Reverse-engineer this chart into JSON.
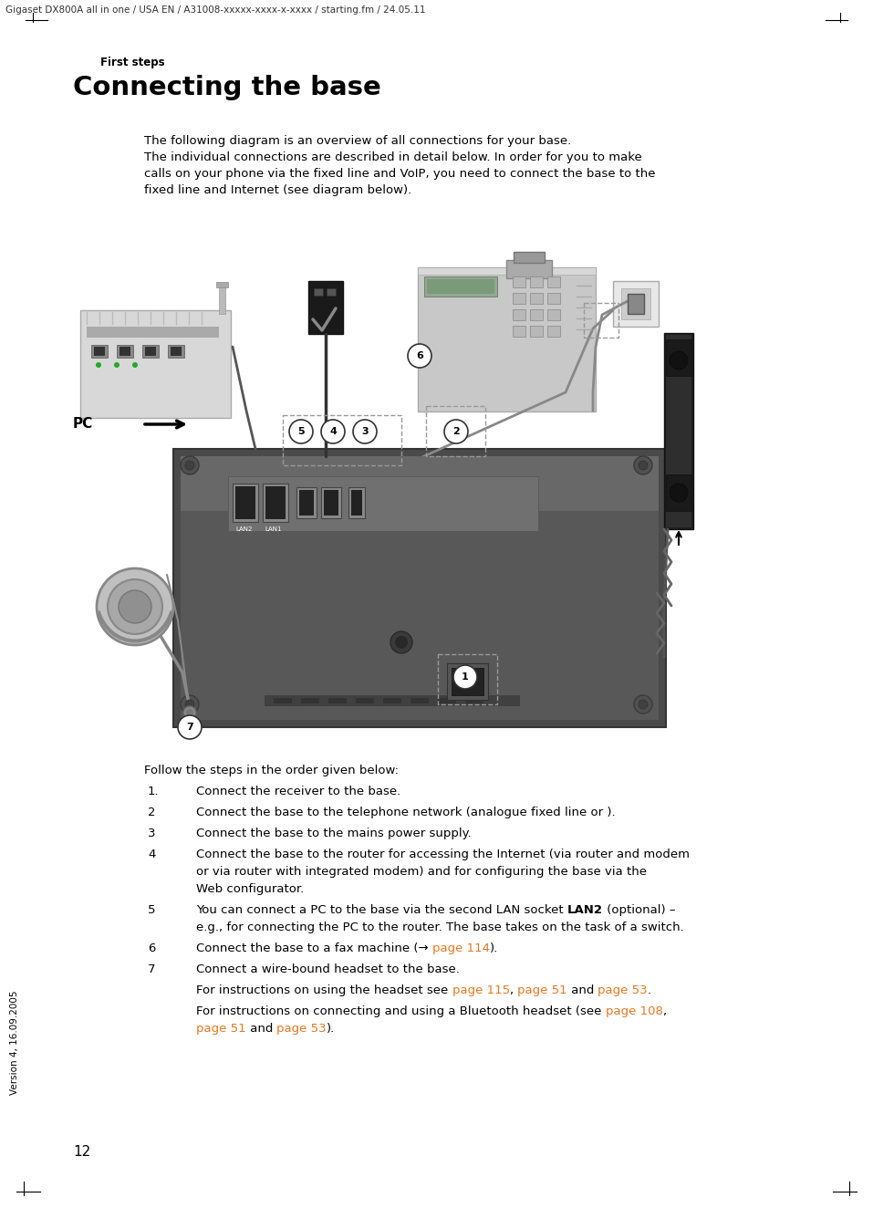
{
  "header_text": "Gigaset DX800A all in one / USA EN / A31008-xxxxx-xxxx-x-xxxx / starting.fm / 24.05.11",
  "section_label": "First steps",
  "title": "Connecting the base",
  "intro_line1": "The following diagram is an overview of all connections for your base.",
  "intro_line2": "The individual connections are described in detail below. In order for you to make",
  "intro_line3": "calls on your phone via the fixed line and VoIP, you need to connect the base to the",
  "intro_line4": "fixed line and Internet (see diagram below).",
  "follow_text": "Follow the steps in the order given below:",
  "step1_num": "1.",
  "step1_text": "Connect the receiver to the base.",
  "step2_num": "2",
  "step2_text": "Connect the base to the telephone network (analogue fixed line or ).",
  "step3_num": "3",
  "step3_text": "Connect the base to the mains power supply.",
  "step4_num": "4",
  "step4_text": "Connect the base to the router for accessing the Internet (via router and modem",
  "step4_text2": "or via router with integrated modem) and for configuring the base via the",
  "step4_text3": "Web configurator.",
  "step5_num": "5",
  "step5_text_a": "You can connect a PC to the base via the second LAN socket ",
  "step5_text_b": "LAN2",
  "step5_text_c": " (optional) –",
  "step5_text2": "e.g., for connecting the PC to the router. The base takes on the task of a switch.",
  "step6_num": "6",
  "step6_text_a": "Connect the base to a fax machine (→ ",
  "step6_text_b": "page 114",
  "step6_text_c": ").",
  "step7_num": "7",
  "step7_text": "Connect a wire-bound headset to the base.",
  "headset1_a": "For instructions on using the headset see ",
  "headset1_b": "page 115",
  "headset1_c": ", ",
  "headset1_d": "page 51",
  "headset1_e": " and ",
  "headset1_f": "page 53",
  "headset1_g": ".",
  "headset2_a": "For instructions on connecting and using a Bluetooth headset (see ",
  "headset2_b": "page 108",
  "headset2_c": ",",
  "headset2_d": "page 51",
  "headset2_e": " and ",
  "headset2_f": "page 53",
  "headset2_g": ").",
  "page_number": "12",
  "version_text": "Version 4, 16.09.2005",
  "bg_color": "#ffffff",
  "black": "#000000",
  "orange": "#e87722",
  "gray_dark": "#4a4a4a",
  "gray_mid": "#787878",
  "gray_light": "#c0c0c0",
  "gray_lighter": "#d8d8d8",
  "gray_base": "#606060"
}
